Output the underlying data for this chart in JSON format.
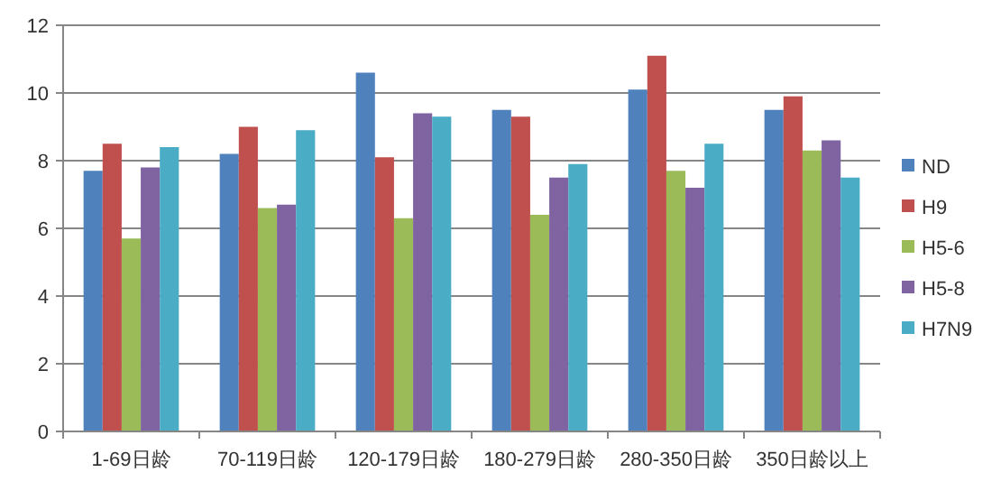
{
  "chart_data": {
    "type": "bar",
    "categories": [
      "1-69日龄",
      "70-119日龄",
      "120-179日龄",
      "180-279日龄",
      "280-350日龄",
      "350日龄以上"
    ],
    "series": [
      {
        "name": "ND",
        "color": "#4f81bd",
        "values": [
          7.7,
          8.2,
          10.6,
          9.5,
          10.1,
          9.5
        ]
      },
      {
        "name": "H9",
        "color": "#c0504d",
        "values": [
          8.5,
          9.0,
          8.1,
          9.3,
          11.1,
          9.9
        ]
      },
      {
        "name": "H5-6",
        "color": "#9bbb59",
        "values": [
          5.7,
          6.6,
          6.3,
          6.4,
          7.7,
          8.3
        ]
      },
      {
        "name": "H5-8",
        "color": "#8064a2",
        "values": [
          7.8,
          6.7,
          9.4,
          7.5,
          7.2,
          8.6
        ]
      },
      {
        "name": "H7N9",
        "color": "#4bacc6",
        "values": [
          8.4,
          8.9,
          9.3,
          7.9,
          8.5,
          7.5
        ]
      }
    ],
    "ylim": [
      0,
      12
    ],
    "yticks": [
      0,
      2,
      4,
      6,
      8,
      10,
      12
    ],
    "grid": "y",
    "legend": "right"
  }
}
